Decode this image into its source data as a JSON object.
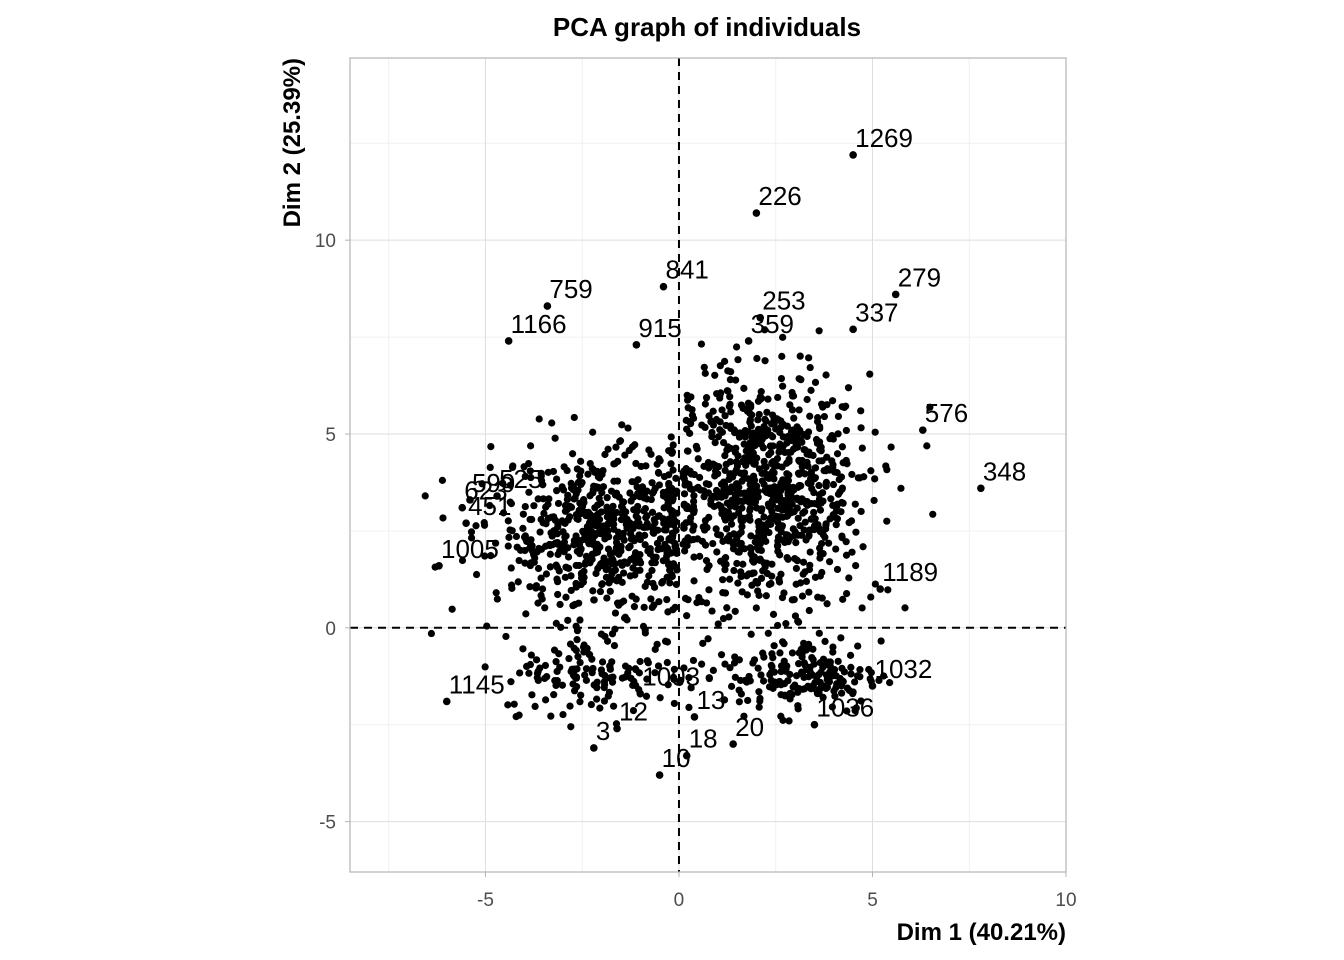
{
  "chart_data": {
    "type": "scatter",
    "title": "PCA graph of individuals",
    "xlabel": "Dim 1 (40.21%)",
    "ylabel": "Dim 2 (25.39%)",
    "xlim": [
      -8.5,
      10
    ],
    "ylim": [
      -6.3,
      14.7
    ],
    "x_ticks": [
      -5,
      0,
      5,
      10
    ],
    "y_ticks": [
      -5,
      0,
      5,
      10
    ],
    "x_tick_labels": [
      "-5",
      "0",
      "5",
      "10"
    ],
    "y_tick_labels": [
      "-5",
      "0",
      "5",
      "10"
    ],
    "grid": true,
    "reference_lines": [
      {
        "axis": "x",
        "value": 0,
        "style": "dashed"
      },
      {
        "axis": "y",
        "value": 0,
        "style": "dashed"
      }
    ],
    "point_color": "#000000",
    "labeled_points": [
      {
        "label": "1269",
        "x": 4.5,
        "y": 12.2
      },
      {
        "label": "226",
        "x": 2.0,
        "y": 10.7
      },
      {
        "label": "279",
        "x": 5.6,
        "y": 8.6
      },
      {
        "label": "348",
        "x": 7.8,
        "y": 3.6
      },
      {
        "label": "841",
        "x": -0.4,
        "y": 8.8
      },
      {
        "label": "759",
        "x": -3.4,
        "y": 8.3
      },
      {
        "label": "1166",
        "x": -4.4,
        "y": 7.4
      },
      {
        "label": "337",
        "x": 4.5,
        "y": 7.7
      },
      {
        "label": "359",
        "x": 1.8,
        "y": 7.4
      },
      {
        "label": "253",
        "x": 2.1,
        "y": 8.0
      },
      {
        "label": "915",
        "x": -1.1,
        "y": 7.3
      },
      {
        "label": "576",
        "x": 6.3,
        "y": 5.1
      },
      {
        "label": "1189",
        "x": 5.2,
        "y": 1.0
      },
      {
        "label": "1005",
        "x": -6.2,
        "y": 1.6
      },
      {
        "label": "1145",
        "x": -6.0,
        "y": -1.9
      },
      {
        "label": "1032",
        "x": 5.0,
        "y": -1.5
      },
      {
        "label": "1036",
        "x": 3.5,
        "y": -2.5
      },
      {
        "label": "10",
        "x": -0.5,
        "y": -3.8
      },
      {
        "label": "18",
        "x": 0.2,
        "y": -3.3
      },
      {
        "label": "20",
        "x": 1.4,
        "y": -3.0
      },
      {
        "label": "12",
        "x": -1.6,
        "y": -2.6
      },
      {
        "label": "3",
        "x": -2.2,
        "y": -3.1
      },
      {
        "label": "13",
        "x": 0.4,
        "y": -2.3
      },
      {
        "label": "1003",
        "x": -1.0,
        "y": -1.7
      },
      {
        "label": "623",
        "x": -5.6,
        "y": 3.1
      },
      {
        "label": "599",
        "x": -5.4,
        "y": 3.3
      },
      {
        "label": "451",
        "x": -5.5,
        "y": 2.7
      },
      {
        "label": "525",
        "x": -4.7,
        "y": 3.4
      }
    ],
    "unlabeled_point_count_note": "dense overplotted clusters"
  }
}
